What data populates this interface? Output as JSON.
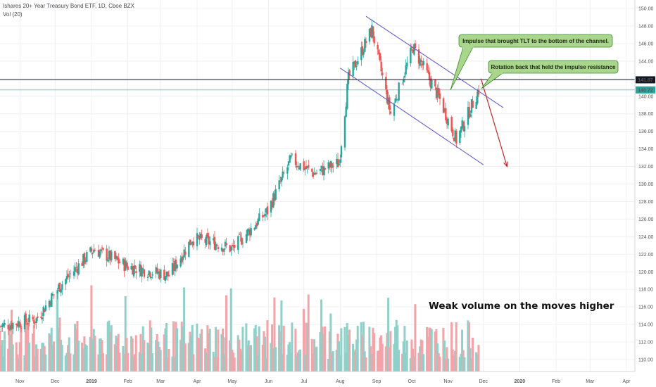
{
  "header": {
    "title": "Ishares 20+ Year Treasury Bond ETF, 1D, Cboe BZX",
    "volume_label": "Vol (20)"
  },
  "chart_data": {
    "type": "candlestick",
    "title": "Ishares 20+ Year Treasury Bond ETF, 1D, Cboe BZX",
    "ylim": [
      110,
      151
    ],
    "y_ticks": [
      "150.00",
      "148.00",
      "146.00",
      "144.00",
      "142.00",
      "140.00",
      "138.00",
      "136.00",
      "134.00",
      "132.00",
      "130.00",
      "128.00",
      "126.00",
      "124.00",
      "122.00",
      "120.00",
      "118.00",
      "116.00",
      "114.00",
      "112.00",
      "110.00"
    ],
    "x_ticks": [
      "Nov",
      "Dec",
      "2019",
      "Feb",
      "Mar",
      "Apr",
      "May",
      "Jun",
      "Jul",
      "Aug",
      "Sep",
      "Oct",
      "Nov",
      "Dec",
      "2020",
      "Feb",
      "Mar",
      "Apr"
    ],
    "price_path": [
      {
        "date": "2018-10-15",
        "close": 113.8
      },
      {
        "date": "2018-11-15",
        "close": 114.6
      },
      {
        "date": "2018-12-05",
        "close": 118.4
      },
      {
        "date": "2019-01-03",
        "close": 122.6
      },
      {
        "date": "2019-02-01",
        "close": 120.6
      },
      {
        "date": "2019-03-08",
        "close": 119.6
      },
      {
        "date": "2019-03-28",
        "close": 123.8
      },
      {
        "date": "2019-04-18",
        "close": 123.2
      },
      {
        "date": "2019-05-01",
        "close": 122.6
      },
      {
        "date": "2019-05-31",
        "close": 126.9
      },
      {
        "date": "2019-06-20",
        "close": 132.8
      },
      {
        "date": "2019-07-10",
        "close": 131.2
      },
      {
        "date": "2019-07-31",
        "close": 132.4
      },
      {
        "date": "2019-08-08",
        "close": 142.0
      },
      {
        "date": "2019-08-28",
        "close": 147.6
      },
      {
        "date": "2019-09-13",
        "close": 138.0
      },
      {
        "date": "2019-10-02",
        "close": 145.6
      },
      {
        "date": "2019-10-25",
        "close": 139.6
      },
      {
        "date": "2019-11-08",
        "close": 135.0
      },
      {
        "date": "2019-11-27",
        "close": 140.7
      }
    ],
    "horizontal_lines": [
      {
        "label": "141.87",
        "value": 141.87,
        "color": "#131722"
      },
      {
        "label": "140.72",
        "value": 140.72,
        "color": "#26a69a"
      }
    ],
    "channel": {
      "upper": [
        {
          "date": "2019-08-23",
          "value": 149.1
        },
        {
          "date": "2019-12-18",
          "value": 138.7
        }
      ],
      "lower": [
        {
          "date": "2019-08-01",
          "value": 143.2
        },
        {
          "date": "2019-12-01",
          "value": 132.2
        }
      ]
    },
    "projection_arrow": [
      {
        "date": "2019-11-29",
        "value": 142.0
      },
      {
        "date": "2019-12-02",
        "value": 132.0
      }
    ],
    "volume_bars": "relative heights; green = up day, red = down day",
    "colors": {
      "up": "#26a69a",
      "down": "#ef5350",
      "vol_up": "#8fd1c9",
      "vol_down": "#f4a3a8",
      "channel": "#5b55c9",
      "arrow": "#c62828",
      "note_bg": "#a9d68c",
      "note_border": "#3d8a2b"
    }
  },
  "annotations": {
    "note1": "Impulse that brought TLT to the bottom of the channel.",
    "note2": "Rotation back that held the impulse resistance",
    "volume_note": "Weak volume on the moves higher"
  }
}
